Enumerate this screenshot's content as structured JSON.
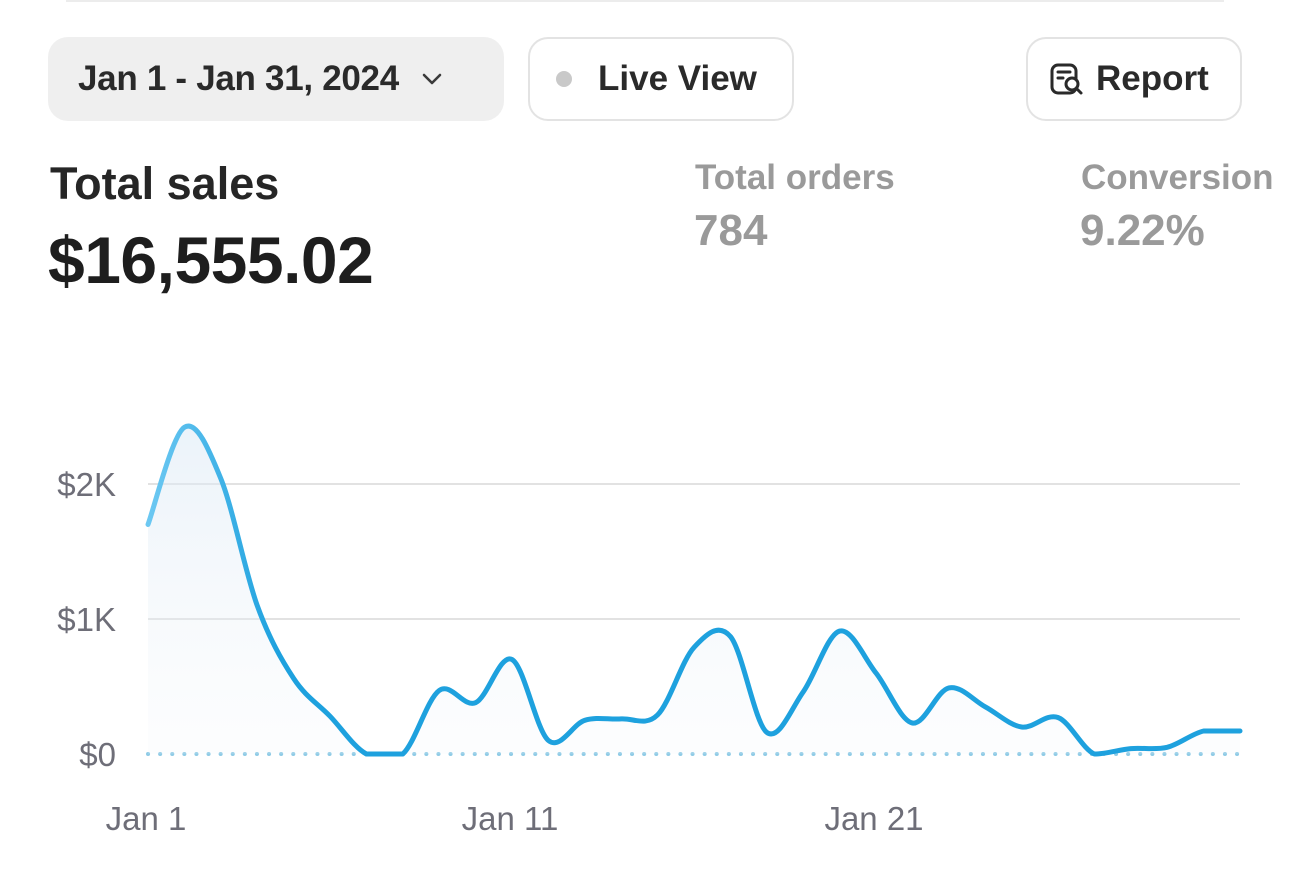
{
  "header": {
    "date_range_label": "Jan 1 - Jan 31, 2024",
    "live_view_label": "Live View",
    "report_label": "Report"
  },
  "metrics": {
    "total_sales": {
      "label": "Total sales",
      "value": "$16,555.02"
    },
    "total_orders": {
      "label": "Total orders",
      "value": "784"
    },
    "conversion": {
      "label": "Conversion",
      "value": "9.22%"
    }
  },
  "colors": {
    "line": "#1ea1de",
    "line_light": "#6cc8f2",
    "gridline": "#e2e2e2",
    "baseline_dots": "#8fcbe6",
    "tick_text": "#6e6e78"
  },
  "icons": {
    "date_picker": "chevron-down-icon",
    "live_view": "status-dot-icon",
    "report": "report-search-icon"
  },
  "chart_data": {
    "type": "line",
    "x_tick_labels": [
      "Jan 1",
      "Jan 11",
      "Jan 21"
    ],
    "y_tick_labels": [
      "$0",
      "$1K",
      "$2K"
    ],
    "ylim": [
      0,
      2500
    ],
    "x": [
      "Jan 1",
      "Jan 2",
      "Jan 3",
      "Jan 4",
      "Jan 5",
      "Jan 6",
      "Jan 7",
      "Jan 8",
      "Jan 9",
      "Jan 10",
      "Jan 11",
      "Jan 12",
      "Jan 13",
      "Jan 14",
      "Jan 15",
      "Jan 16",
      "Jan 17",
      "Jan 18",
      "Jan 19",
      "Jan 20",
      "Jan 21",
      "Jan 22",
      "Jan 23",
      "Jan 24",
      "Jan 25",
      "Jan 26",
      "Jan 27",
      "Jan 28",
      "Jan 29",
      "Jan 30",
      "Jan 31"
    ],
    "series": [
      {
        "values": [
          1700,
          2420,
          2040,
          1100,
          560,
          280,
          0,
          0,
          470,
          380,
          700,
          100,
          250,
          260,
          290,
          790,
          870,
          160,
          460,
          910,
          600,
          230,
          490,
          350,
          200,
          270,
          0,
          40,
          50,
          170,
          170
        ]
      }
    ],
    "grid": true,
    "legend": "none"
  }
}
